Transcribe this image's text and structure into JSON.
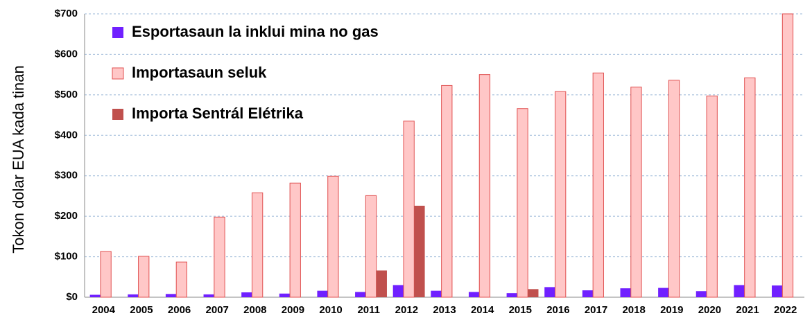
{
  "chart_data": {
    "type": "bar",
    "y_label": "Tokon dolar EUA kada tinan",
    "categories": [
      "2004",
      "2005",
      "2006",
      "2007",
      "2008",
      "2009",
      "2010",
      "2011",
      "2012",
      "2013",
      "2014",
      "2015",
      "2016",
      "2017",
      "2018",
      "2019",
      "2020",
      "2021",
      "2022"
    ],
    "series": [
      {
        "name": "Esportasaun la inklui mina no gas",
        "color": "#7020ff",
        "values": [
          6,
          7,
          8,
          7,
          12,
          9,
          16,
          13,
          30,
          16,
          13,
          10,
          25,
          17,
          22,
          23,
          15,
          30,
          29
        ]
      },
      {
        "name": "Importasaun seluk",
        "color": "#ffc7c7",
        "values": [
          113,
          101,
          87,
          198,
          258,
          282,
          299,
          251,
          435,
          523,
          550,
          466,
          508,
          554,
          519,
          536,
          497,
          542,
          700
        ]
      },
      {
        "name": "Importa Sentrál Elétrika",
        "color": "#c0504d",
        "values": [
          null,
          null,
          null,
          null,
          null,
          null,
          null,
          66,
          226,
          null,
          null,
          20,
          null,
          null,
          null,
          null,
          null,
          null,
          null
        ]
      }
    ],
    "ylim": [
      0,
      700
    ],
    "yticks": [
      {
        "value": 0,
        "label": "$0"
      },
      {
        "value": 100,
        "label": "$100"
      },
      {
        "value": 200,
        "label": "$200"
      },
      {
        "value": 300,
        "label": "$300"
      },
      {
        "value": 400,
        "label": "$400"
      },
      {
        "value": 500,
        "label": "$500"
      },
      {
        "value": 600,
        "label": "$600"
      },
      {
        "value": 700,
        "label": "$700"
      }
    ],
    "grid": true,
    "legend": "top-left"
  }
}
